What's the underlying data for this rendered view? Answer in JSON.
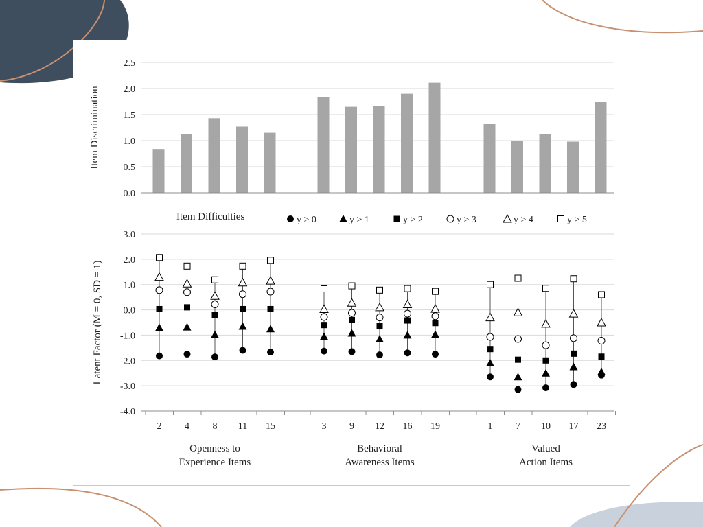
{
  "colors": {
    "bar": "#a6a6a6",
    "grid": "#d9d9d9",
    "axis": "#8c8c8c",
    "marker": "#000000",
    "deco_dark": "#3e4e5e",
    "deco_light": "#c9d1dc",
    "deco_line": "#c9906f"
  },
  "chart_data": [
    {
      "type": "bar",
      "ylabel": "Item Discrimination",
      "ylim": [
        0,
        2.5
      ],
      "yticks": [
        "0.0",
        "0.5",
        "1.0",
        "1.5",
        "2.0",
        "2.5"
      ],
      "grid": true,
      "groups": [
        {
          "items": [
            "2",
            "4",
            "8",
            "11",
            "15"
          ],
          "values": [
            0.84,
            1.12,
            1.43,
            1.27,
            1.15
          ]
        },
        {
          "items": [
            "3",
            "9",
            "12",
            "16",
            "19"
          ],
          "values": [
            1.84,
            1.65,
            1.66,
            1.9,
            2.11
          ]
        },
        {
          "items": [
            "1",
            "7",
            "10",
            "17",
            "23"
          ],
          "values": [
            1.32,
            1.0,
            1.13,
            0.98,
            1.74
          ]
        }
      ]
    },
    {
      "type": "scatter",
      "title": "Item Difficulties",
      "ylabel": "Latent Factor (M = 0, SD = 1)",
      "ylim": [
        -4.0,
        3.0
      ],
      "yticks": [
        "-4.0",
        "-3.0",
        "-2.0",
        "-1.0",
        "0.0",
        "1.0",
        "2.0",
        "3.0"
      ],
      "grid": true,
      "legend_position": "top",
      "series": [
        {
          "name": "y > 0",
          "marker": "filled-circle"
        },
        {
          "name": "y > 1",
          "marker": "filled-triangle"
        },
        {
          "name": "y > 2",
          "marker": "filled-square"
        },
        {
          "name": "y > 3",
          "marker": "open-circle"
        },
        {
          "name": "y > 4",
          "marker": "open-triangle"
        },
        {
          "name": "y > 5",
          "marker": "open-square"
        }
      ],
      "groups": [
        {
          "label_line1": "Openness to",
          "label_line2": "Experience Items",
          "items": [
            {
              "item": "2",
              "values": [
                -1.82,
                -0.7,
                0.03,
                0.78,
                1.3,
                2.07
              ]
            },
            {
              "item": "4",
              "values": [
                -1.75,
                -0.68,
                0.1,
                0.7,
                1.04,
                1.73
              ]
            },
            {
              "item": "8",
              "values": [
                -1.86,
                -0.98,
                -0.2,
                0.22,
                0.55,
                1.19
              ]
            },
            {
              "item": "11",
              "values": [
                -1.6,
                -0.65,
                0.03,
                0.62,
                1.08,
                1.73
              ]
            },
            {
              "item": "15",
              "values": [
                -1.67,
                -0.75,
                0.03,
                0.72,
                1.15,
                1.96
              ]
            }
          ]
        },
        {
          "label_line1": "Behavioral",
          "label_line2": "Awareness Items",
          "items": [
            {
              "item": "3",
              "values": [
                -1.63,
                -1.05,
                -0.6,
                -0.28,
                0.03,
                0.83
              ]
            },
            {
              "item": "9",
              "values": [
                -1.65,
                -0.92,
                -0.4,
                -0.12,
                0.28,
                0.95
              ]
            },
            {
              "item": "12",
              "values": [
                -1.78,
                -1.15,
                -0.65,
                -0.3,
                0.1,
                0.78
              ]
            },
            {
              "item": "16",
              "values": [
                -1.7,
                -1.0,
                -0.42,
                -0.15,
                0.22,
                0.84
              ]
            },
            {
              "item": "19",
              "values": [
                -1.75,
                -0.97,
                -0.52,
                -0.25,
                0.04,
                0.73
              ]
            }
          ]
        },
        {
          "label_line1": "Valued",
          "label_line2": "Action Items",
          "items": [
            {
              "item": "1",
              "values": [
                -2.65,
                -2.1,
                -1.55,
                -1.07,
                -0.3,
                1.0
              ]
            },
            {
              "item": "7",
              "values": [
                -3.15,
                -2.65,
                -1.97,
                -1.15,
                -0.1,
                1.25
              ]
            },
            {
              "item": "10",
              "values": [
                -3.08,
                -2.5,
                -2.0,
                -1.4,
                -0.55,
                0.85
              ]
            },
            {
              "item": "17",
              "values": [
                -2.95,
                -2.25,
                -1.73,
                -1.12,
                -0.15,
                1.23
              ]
            },
            {
              "item": "23",
              "values": [
                -2.58,
                -2.45,
                -1.85,
                -1.22,
                -0.5,
                0.6
              ]
            }
          ]
        }
      ]
    }
  ]
}
